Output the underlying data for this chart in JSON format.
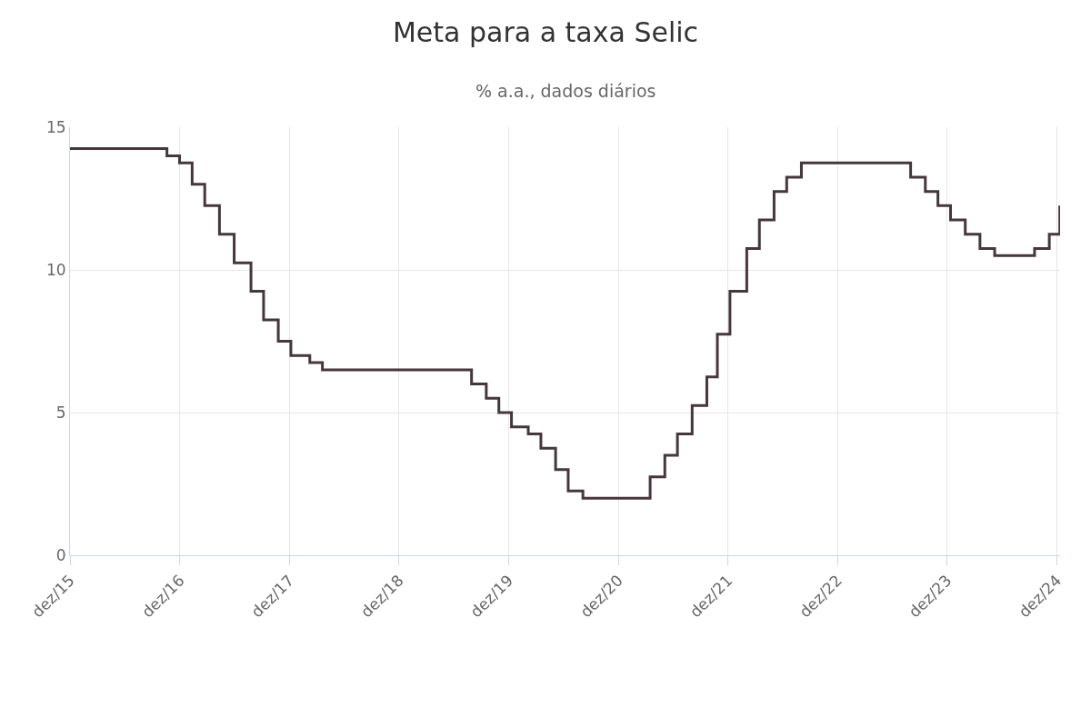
{
  "chart_data": {
    "type": "step",
    "title": "Meta para a taxa Selic",
    "subtitle": "% a.a., dados diários",
    "x": [
      "2015-12-01",
      "2016-10-19",
      "2016-11-30",
      "2017-01-11",
      "2017-02-22",
      "2017-04-12",
      "2017-05-31",
      "2017-07-26",
      "2017-09-06",
      "2017-10-25",
      "2017-12-06",
      "2018-02-07",
      "2018-03-21",
      "2019-07-31",
      "2019-09-18",
      "2019-10-30",
      "2019-12-11",
      "2020-02-05",
      "2020-03-18",
      "2020-05-06",
      "2020-06-17",
      "2020-08-05",
      "2021-03-17",
      "2021-05-05",
      "2021-06-16",
      "2021-08-04",
      "2021-09-22",
      "2021-10-27",
      "2021-12-08",
      "2022-02-02",
      "2022-03-16",
      "2022-05-04",
      "2022-06-15",
      "2022-08-03",
      "2023-08-02",
      "2023-09-20",
      "2023-11-01",
      "2023-12-13",
      "2024-01-31",
      "2024-03-20",
      "2024-05-08",
      "2024-09-18",
      "2024-11-06",
      "2024-12-11"
    ],
    "series": [
      {
        "color": "#46363d",
        "values": [
          14.25,
          14.0,
          13.75,
          13.0,
          12.25,
          11.25,
          10.25,
          9.25,
          8.25,
          7.5,
          7.0,
          6.75,
          6.5,
          6.0,
          5.5,
          5.0,
          4.5,
          4.25,
          3.75,
          3.0,
          2.25,
          2.0,
          2.75,
          3.5,
          4.25,
          5.25,
          6.25,
          7.75,
          9.25,
          10.75,
          11.75,
          12.75,
          13.25,
          13.75,
          13.25,
          12.75,
          12.25,
          11.75,
          11.25,
          10.75,
          10.5,
          10.75,
          11.25,
          12.25
        ]
      }
    ],
    "xlim": [
      "2015-12-01",
      "2024-12-12"
    ],
    "xticks": [
      {
        "value": "2015-12-01",
        "label": "dez/15"
      },
      {
        "value": "2016-12-01",
        "label": "dez/16"
      },
      {
        "value": "2017-12-01",
        "label": "dez/17"
      },
      {
        "value": "2018-12-01",
        "label": "dez/18"
      },
      {
        "value": "2019-12-01",
        "label": "dez/19"
      },
      {
        "value": "2020-12-01",
        "label": "dez/20"
      },
      {
        "value": "2021-12-01",
        "label": "dez/21"
      },
      {
        "value": "2022-12-01",
        "label": "dez/22"
      },
      {
        "value": "2023-12-01",
        "label": "dez/23"
      },
      {
        "value": "2024-12-01",
        "label": "dez/24"
      }
    ],
    "ylim": [
      0,
      15
    ],
    "yticks": [
      0,
      5,
      10,
      15
    ],
    "grid": true,
    "marker": "none",
    "line_style": "solid"
  }
}
